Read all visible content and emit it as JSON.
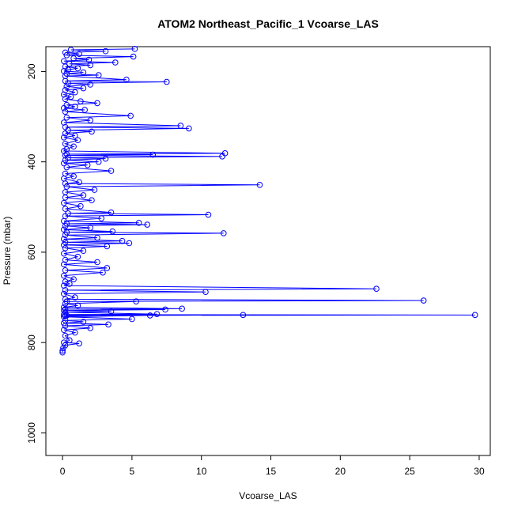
{
  "chart_data": {
    "type": "line",
    "title": "ATOM2 Northeast_Pacific_1 Vcoarse_LAS",
    "xlabel": "Vcoarse_LAS",
    "ylabel": "Pressure (mbar)",
    "xlim": [
      -1.2,
      30.8
    ],
    "ylim": [
      1050,
      145
    ],
    "y_reversed": true,
    "x_ticks": [
      0,
      5,
      10,
      15,
      20,
      25,
      30
    ],
    "y_ticks": [
      200,
      400,
      600,
      800,
      1000
    ],
    "grid": false,
    "legend": "none",
    "colors": {
      "series": "#0000ff",
      "axis": "#000000",
      "background": "#ffffff"
    },
    "series": [
      {
        "values_note": "x = Vcoarse_LAS, y = Pressure (mbar), ordered by pressure (approximate readings)",
        "points": [
          [
            5.2,
            150
          ],
          [
            0.6,
            152
          ],
          [
            3.1,
            155
          ],
          [
            0.2,
            158
          ],
          [
            1.2,
            161
          ],
          [
            0.3,
            164
          ],
          [
            5.1,
            167
          ],
          [
            0.8,
            171
          ],
          [
            1.9,
            174
          ],
          [
            0.1,
            177
          ],
          [
            3.8,
            180
          ],
          [
            0.5,
            183
          ],
          [
            2.0,
            186
          ],
          [
            0.2,
            189
          ],
          [
            1.1,
            193
          ],
          [
            0.4,
            196
          ],
          [
            0.1,
            199
          ],
          [
            1.5,
            202
          ],
          [
            0.3,
            205
          ],
          [
            2.6,
            208
          ],
          [
            0.2,
            210
          ],
          [
            4.6,
            218
          ],
          [
            0.2,
            221
          ],
          [
            7.5,
            223
          ],
          [
            0.4,
            226
          ],
          [
            2.0,
            229
          ],
          [
            0.3,
            233
          ],
          [
            1.5,
            237
          ],
          [
            0.2,
            241
          ],
          [
            0.9,
            246
          ],
          [
            0.1,
            251
          ],
          [
            0.6,
            256
          ],
          [
            0.2,
            261
          ],
          [
            1.3,
            266
          ],
          [
            2.5,
            270
          ],
          [
            0.3,
            274
          ],
          [
            0.9,
            278
          ],
          [
            0.1,
            281
          ],
          [
            1.6,
            285
          ],
          [
            0.2,
            289
          ],
          [
            4.9,
            298
          ],
          [
            0.3,
            302
          ],
          [
            2.0,
            308
          ],
          [
            0.1,
            313
          ],
          [
            8.5,
            320
          ],
          [
            0.2,
            323
          ],
          [
            9.1,
            326
          ],
          [
            0.4,
            330
          ],
          [
            2.1,
            333
          ],
          [
            0.2,
            337
          ],
          [
            0.9,
            342
          ],
          [
            0.1,
            346
          ],
          [
            1.1,
            352
          ],
          [
            0.2,
            360
          ],
          [
            0.8,
            366
          ],
          [
            0.3,
            372
          ],
          [
            0.1,
            376
          ],
          [
            11.7,
            381
          ],
          [
            0.3,
            383
          ],
          [
            6.5,
            384
          ],
          [
            0.2,
            386
          ],
          [
            11.5,
            388
          ],
          [
            0.4,
            391
          ],
          [
            3.1,
            393
          ],
          [
            0.2,
            396
          ],
          [
            2.6,
            400
          ],
          [
            0.1,
            403
          ],
          [
            1.8,
            407
          ],
          [
            0.3,
            412
          ],
          [
            3.5,
            420
          ],
          [
            0.2,
            426
          ],
          [
            0.8,
            432
          ],
          [
            0.1,
            437
          ],
          [
            1.2,
            445
          ],
          [
            0.2,
            448
          ],
          [
            14.2,
            451
          ],
          [
            0.3,
            455
          ],
          [
            2.3,
            462
          ],
          [
            0.2,
            467
          ],
          [
            1.5,
            474
          ],
          [
            0.2,
            479
          ],
          [
            2.1,
            485
          ],
          [
            0.1,
            491
          ],
          [
            1.3,
            498
          ],
          [
            0.2,
            504
          ],
          [
            3.5,
            512
          ],
          [
            0.4,
            514
          ],
          [
            10.5,
            517
          ],
          [
            0.2,
            520
          ],
          [
            2.8,
            525
          ],
          [
            0.1,
            531
          ],
          [
            5.5,
            535
          ],
          [
            0.3,
            537
          ],
          [
            6.1,
            539
          ],
          [
            0.2,
            542
          ],
          [
            2.0,
            546
          ],
          [
            0.1,
            550
          ],
          [
            3.6,
            554
          ],
          [
            0.3,
            556
          ],
          [
            11.6,
            558
          ],
          [
            0.2,
            562
          ],
          [
            2.5,
            568
          ],
          [
            0.1,
            571
          ],
          [
            4.3,
            575
          ],
          [
            0.2,
            578
          ],
          [
            4.8,
            580
          ],
          [
            0.1,
            584
          ],
          [
            3.2,
            587
          ],
          [
            0.2,
            591
          ],
          [
            1.5,
            597
          ],
          [
            0.1,
            603
          ],
          [
            1.1,
            610
          ],
          [
            0.2,
            617
          ],
          [
            2.5,
            622
          ],
          [
            0.1,
            627
          ],
          [
            3.2,
            635
          ],
          [
            0.2,
            640
          ],
          [
            2.9,
            645
          ],
          [
            0.1,
            652
          ],
          [
            0.8,
            660
          ],
          [
            0.2,
            665
          ],
          [
            0.5,
            670
          ],
          [
            0.1,
            674
          ],
          [
            22.6,
            681
          ],
          [
            0.2,
            684
          ],
          [
            10.3,
            688
          ],
          [
            0.1,
            692
          ],
          [
            0.9,
            700
          ],
          [
            0.2,
            704
          ],
          [
            26.0,
            707
          ],
          [
            0.3,
            709
          ],
          [
            5.3,
            709
          ],
          [
            0.2,
            714
          ],
          [
            1.1,
            718
          ],
          [
            0.1,
            722
          ],
          [
            8.6,
            725
          ],
          [
            0.2,
            726
          ],
          [
            7.4,
            727
          ],
          [
            0.1,
            729
          ],
          [
            3.5,
            731
          ],
          [
            0.2,
            733
          ],
          [
            6.8,
            737
          ],
          [
            0.1,
            738
          ],
          [
            29.7,
            739
          ],
          [
            0.3,
            740
          ],
          [
            13.0,
            739
          ],
          [
            0.2,
            741
          ],
          [
            6.3,
            740
          ],
          [
            0.1,
            743
          ],
          [
            5.0,
            748
          ],
          [
            0.2,
            751
          ],
          [
            1.5,
            754
          ],
          [
            0.1,
            757
          ],
          [
            3.3,
            760
          ],
          [
            0.2,
            763
          ],
          [
            2.0,
            768
          ],
          [
            0.1,
            772
          ],
          [
            0.9,
            778
          ],
          [
            0.2,
            785
          ],
          [
            0.5,
            795
          ],
          [
            0.1,
            800
          ],
          [
            1.2,
            802
          ],
          [
            0.2,
            806
          ],
          [
            0.05,
            812
          ],
          [
            0.0,
            818
          ],
          [
            0.0,
            822
          ]
        ]
      }
    ]
  }
}
